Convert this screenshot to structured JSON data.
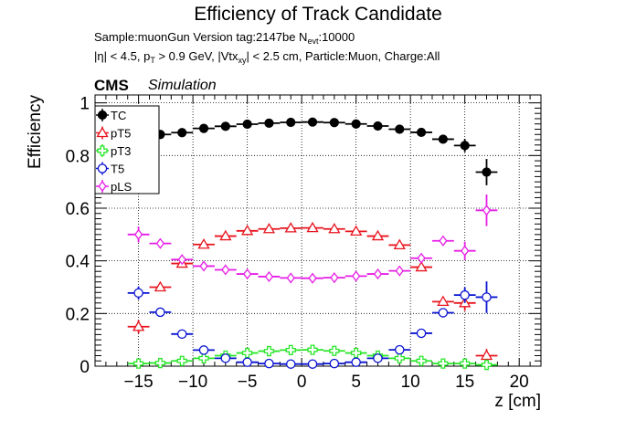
{
  "header": {
    "title": "Efficiency of Track Candidate",
    "sample_text": "Sample:muonGun   Version tag:2147be  N",
    "sample_sub": "evt",
    "sample_tail": ":10000",
    "cuts_a": "|η| < 4.5, p",
    "cuts_a_sub": "T",
    "cuts_b": " > 0.9 GeV, |Vtx",
    "cuts_b_sub": "xy",
    "cuts_c": "| < 2.5 cm, Particle:Muon, Charge:All",
    "cms": "CMS",
    "simulation": "Simulation"
  },
  "colors": {
    "TC": "#000000",
    "pT5": "#e8141e",
    "pT3": "#28e628",
    "T5": "#0a14d2",
    "pLS": "#e61ee6"
  },
  "chart_data": {
    "type": "scatter",
    "xlabel": "z [cm]",
    "ylabel": "Efficiency",
    "xlim": [
      -19,
      22
    ],
    "ylim": [
      0,
      1.03
    ],
    "x_ticks": [
      -15,
      -10,
      -5,
      0,
      5,
      10,
      15,
      20
    ],
    "y_ticks": [
      0,
      0.2,
      0.4,
      0.6,
      0.8,
      1
    ],
    "grid": true,
    "legend_position": "top-left",
    "x_bin_halfwidth": 1.0,
    "x": [
      -15,
      -13,
      -11,
      -9,
      -7,
      -5,
      -3,
      -1,
      1,
      3,
      5,
      7,
      9,
      11,
      13,
      15,
      17
    ],
    "series": [
      {
        "name": "TC",
        "marker": "filled-circle",
        "values": [
          null,
          0.88,
          0.887,
          0.903,
          0.911,
          0.919,
          0.923,
          0.926,
          0.927,
          0.925,
          0.92,
          0.912,
          0.9,
          0.888,
          0.862,
          0.838,
          0.737
        ],
        "errors": [
          0,
          0.01,
          0.008,
          0.007,
          0.006,
          0.006,
          0.006,
          0.005,
          0.005,
          0.005,
          0.006,
          0.006,
          0.007,
          0.008,
          0.01,
          0.025,
          0.05
        ]
      },
      {
        "name": "pT5",
        "marker": "open-triangle",
        "values": [
          0.15,
          0.3,
          0.39,
          0.462,
          0.494,
          0.514,
          0.521,
          0.524,
          0.525,
          0.521,
          0.512,
          0.494,
          0.46,
          0.376,
          0.245,
          0.24,
          0.04
        ],
        "errors": [
          0.025,
          0.012,
          0.01,
          0.01,
          0.009,
          0.009,
          0.009,
          0.009,
          0.009,
          0.009,
          0.009,
          0.009,
          0.01,
          0.01,
          0.012,
          0.03,
          0.025
        ]
      },
      {
        "name": "pT3",
        "marker": "open-cross",
        "values": [
          0.01,
          0.012,
          0.02,
          0.03,
          0.04,
          0.05,
          0.057,
          0.061,
          0.062,
          0.058,
          0.05,
          0.04,
          0.03,
          0.02,
          0.01,
          0.01,
          0.005
        ],
        "errors": [
          0.005,
          0.004,
          0.004,
          0.004,
          0.004,
          0.004,
          0.005,
          0.005,
          0.005,
          0.005,
          0.004,
          0.004,
          0.004,
          0.004,
          0.004,
          0.005,
          0.005
        ]
      },
      {
        "name": "T5",
        "marker": "open-circle",
        "values": [
          0.278,
          0.205,
          0.122,
          0.061,
          0.03,
          0.015,
          0.01,
          0.008,
          0.008,
          0.01,
          0.015,
          0.03,
          0.062,
          0.125,
          0.203,
          0.27,
          0.262
        ],
        "errors": [
          0.025,
          0.01,
          0.008,
          0.006,
          0.004,
          0.003,
          0.003,
          0.003,
          0.003,
          0.003,
          0.003,
          0.004,
          0.006,
          0.008,
          0.01,
          0.03,
          0.06
        ]
      },
      {
        "name": "pLS",
        "marker": "open-diamond",
        "values": [
          0.5,
          0.466,
          0.405,
          0.38,
          0.366,
          0.35,
          0.34,
          0.335,
          0.334,
          0.336,
          0.342,
          0.35,
          0.362,
          0.41,
          0.476,
          0.438,
          0.592
        ],
        "errors": [
          0.03,
          0.01,
          0.01,
          0.009,
          0.009,
          0.009,
          0.009,
          0.009,
          0.009,
          0.009,
          0.009,
          0.009,
          0.009,
          0.01,
          0.012,
          0.035,
          0.06
        ]
      }
    ]
  }
}
